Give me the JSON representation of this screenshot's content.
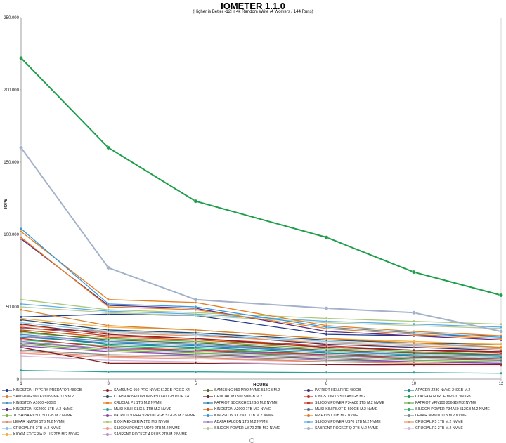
{
  "chart_data": {
    "type": "line",
    "title": "IOMETER 1.1.0",
    "subtitle": "(Higher is Better -12Hr 4k Random Write /4 Workers / 144 Runs)",
    "xlabel": "HOURS",
    "ylabel": "IOPS",
    "x": [
      1,
      3,
      5,
      8,
      10,
      12
    ],
    "ylim": [
      0,
      250000
    ],
    "yticks": [
      0,
      50000,
      100000,
      150000,
      200000,
      250000
    ],
    "ytick_labels": [
      "0",
      "50.000",
      "100.000",
      "150.000",
      "200.000",
      "250.000"
    ],
    "grid": false,
    "legend_position": "bottom",
    "series": [
      {
        "name": "KINGSTON HYPERX PREDATOR 480GB",
        "color": "#1f3c88",
        "values": [
          43000,
          45000,
          44000,
          31000,
          30000,
          30000
        ]
      },
      {
        "name": "SAMSUNG 950 PRO NVME 512GB PCIEX X4",
        "color": "#8b2323",
        "values": [
          38000,
          31000,
          28000,
          22000,
          20000,
          19000
        ]
      },
      {
        "name": "SAMSUNG 950 PRO NVME 512GB M.2",
        "color": "#556b2f",
        "values": [
          33000,
          27000,
          25000,
          20000,
          18000,
          17000
        ]
      },
      {
        "name": "PATRIOT HELLFIRE 480GB",
        "color": "#3b2f6b",
        "values": [
          35000,
          33000,
          31000,
          24000,
          22000,
          20000
        ]
      },
      {
        "name": "APACER Z280 NVME 240GB M.2",
        "color": "#1a8a8a",
        "values": [
          30000,
          24000,
          22000,
          18000,
          16000,
          15000
        ]
      },
      {
        "name": "SAMSUNG 960 EVO NVME 1TB M.2",
        "color": "#d9822b",
        "values": [
          48000,
          37000,
          34000,
          28000,
          25000,
          22000
        ]
      },
      {
        "name": "CORSAIR NEUTRON NX500 400GB PCIE X4",
        "color": "#34495e",
        "values": [
          41000,
          34000,
          32000,
          27000,
          25000,
          24000
        ]
      },
      {
        "name": "CRUCIAL MX500 500GB M.2",
        "color": "#7b1f1f",
        "values": [
          22000,
          11000,
          11000,
          10000,
          10000,
          10000
        ]
      },
      {
        "name": "KINGSTON UV500 480GB M.2",
        "color": "#c0392b",
        "values": [
          28000,
          22000,
          20000,
          17000,
          15000,
          14000
        ]
      },
      {
        "name": "CORSAIR FORCE MP510 960GB",
        "color": "#1e9e4a",
        "values": [
          222000,
          160000,
          123000,
          98000,
          74000,
          58000
        ]
      },
      {
        "name": "KINGSTON A1000 480GB",
        "color": "#4a90c2",
        "values": [
          31000,
          26000,
          24000,
          19000,
          17000,
          16000
        ]
      },
      {
        "name": "CRUCIAL P1 1TB M.2 NVME",
        "color": "#e67e22",
        "values": [
          98000,
          50000,
          48000,
          35000,
          31000,
          28000
        ]
      },
      {
        "name": "PATRIOT SCORCH 512GB M.2 NVME",
        "color": "#2980b9",
        "values": [
          29000,
          25000,
          23000,
          19000,
          17000,
          16000
        ]
      },
      {
        "name": "SILICON POWER P34A80 1TB M.2 NVME",
        "color": "#c0392b",
        "values": [
          36000,
          30000,
          28000,
          23000,
          20000,
          18000
        ]
      },
      {
        "name": "PATRIOT VPN100 256GB M.2 NVME",
        "color": "#6aa84f",
        "values": [
          32000,
          28000,
          26000,
          21000,
          19000,
          17000
        ]
      },
      {
        "name": "KINGSTON KC2000 1TB M.2 NVME",
        "color": "#5b2c83",
        "values": [
          97000,
          51000,
          49000,
          33000,
          30000,
          27000
        ]
      },
      {
        "name": "MUSHKIN HELIX-L 1TB M.2 NVME",
        "color": "#2aa198",
        "values": [
          6000,
          5000,
          5000,
          4500,
          4500,
          4000
        ]
      },
      {
        "name": "KINGSTON A2000 1TB M.2 NVME",
        "color": "#d35400",
        "values": [
          34000,
          29000,
          27000,
          22000,
          20000,
          19000
        ]
      },
      {
        "name": "MUSHKIN PILOT-E 500GB M.2 NVME",
        "color": "#5d6d7e",
        "values": [
          25000,
          21000,
          19000,
          16000,
          14000,
          13000
        ]
      },
      {
        "name": "SILICON POWER P34A60 512GB M.2 NVME",
        "color": "#27ae60",
        "values": [
          27000,
          23000,
          21000,
          17000,
          15000,
          14000
        ]
      },
      {
        "name": "TOSHIBA RC500 500GB M.2 NVME",
        "color": "#76b041",
        "values": [
          24000,
          20000,
          18000,
          15000,
          13000,
          12000
        ]
      },
      {
        "name": "PATRIOT VIPER VPR100 RGB 512GB M.2 NVME",
        "color": "#8e44ad",
        "values": [
          23000,
          19000,
          17000,
          14000,
          12000,
          11000
        ]
      },
      {
        "name": "KINGSTON KC2500 1TB M.2 NVME",
        "color": "#3498db",
        "values": [
          104000,
          52000,
          50000,
          36000,
          32000,
          29000
        ]
      },
      {
        "name": "HP EX950 1TB M.2 NVME",
        "color": "#e67e22",
        "values": [
          102000,
          55000,
          53000,
          37000,
          33000,
          30000
        ]
      },
      {
        "name": "LEXAR NM610 1TB M.2 NVME",
        "color": "#7f8c8d",
        "values": [
          20000,
          17000,
          16000,
          13000,
          12000,
          11000
        ]
      },
      {
        "name": "LEXAR NM700 1TB M.2 NVME",
        "color": "#d98c6b",
        "values": [
          19000,
          16000,
          15000,
          12000,
          11000,
          10000
        ]
      },
      {
        "name": "KIOXIA EXCERIA 1TB M.2 NVME",
        "color": "#a9c97a",
        "values": [
          55000,
          48000,
          46000,
          42000,
          40000,
          38000
        ]
      },
      {
        "name": "ADATA FALCON 1TB M.2 NVME",
        "color": "#9b7fc7",
        "values": [
          26000,
          21000,
          20000,
          16000,
          15000,
          14000
        ]
      },
      {
        "name": "SILICON POWER US70 1TB M.2 NVME",
        "color": "#5dade2",
        "values": [
          52000,
          47000,
          45000,
          40000,
          38000,
          36000
        ]
      },
      {
        "name": "CRUCIAL P5 1TB M.2 NVME",
        "color": "#e59866",
        "values": [
          37000,
          32000,
          30000,
          25000,
          23000,
          21000
        ]
      },
      {
        "name": "CRUCIAL P5 2TB M.2 NVME",
        "color": "#85c1e9",
        "values": [
          39000,
          33000,
          31000,
          26000,
          24000,
          22000
        ]
      },
      {
        "name": "SILICON POWER UD70 2TB M.2 NVME",
        "color": "#f1948a",
        "values": [
          18000,
          15000,
          14000,
          12000,
          11000,
          10000
        ]
      },
      {
        "name": "SILICON POWER US70 2TB M.2 NVME",
        "color": "#b5c99a",
        "values": [
          50000,
          46000,
          44000,
          39000,
          37000,
          35000
        ]
      },
      {
        "name": "SABRENT ROCKET Q 2TB M.2 NVME",
        "color": "#a3b1c9",
        "values": [
          160000,
          77000,
          55000,
          49000,
          46000,
          33000
        ]
      },
      {
        "name": "CRUCIAL P2 2TB M.2 NVME",
        "color": "#d5b8e0",
        "values": [
          16000,
          13000,
          12000,
          10000,
          9000,
          9000
        ]
      },
      {
        "name": "KIOXIA EXCERIA PLUS 2TB M.2 NVME",
        "color": "#f5b041",
        "values": [
          42000,
          36000,
          34000,
          28000,
          26000,
          24000
        ]
      },
      {
        "name": "SABRENT ROCKET 4 PLUS 2TB M.2 NVME",
        "color": "#bb8fce",
        "values": [
          30000,
          26000,
          24000,
          20000,
          18000,
          17000
        ]
      }
    ]
  }
}
